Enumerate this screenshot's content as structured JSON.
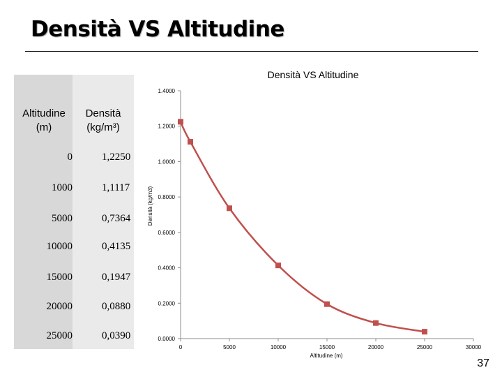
{
  "slide": {
    "title": "Densità VS Altitudine",
    "page_number": "37"
  },
  "table": {
    "header_altitude": [
      "Altitudine",
      "(m)"
    ],
    "header_density": [
      "Densità",
      "(kg/m³)"
    ],
    "rows": [
      {
        "altitude": "0",
        "density": "1,2250"
      },
      {
        "altitude": "1000",
        "density": "1,1117"
      },
      {
        "altitude": "5000",
        "density": "0,7364"
      },
      {
        "altitude": "10000",
        "density": "0,4135"
      },
      {
        "altitude": "15000",
        "density": "0,1947"
      },
      {
        "altitude": "20000",
        "density": "0,0880"
      },
      {
        "altitude": "25000",
        "density": "0,0390"
      }
    ]
  },
  "chart_data": {
    "type": "line",
    "title": "Densità VS Altitudine",
    "xlabel": "Altitudine (m)",
    "ylabel": "Densità (kg/m3)",
    "xlim": [
      0,
      30000
    ],
    "ylim": [
      0,
      1.4
    ],
    "x_ticks": [
      0,
      5000,
      10000,
      15000,
      20000,
      25000,
      30000
    ],
    "x_tick_labels": [
      "0",
      "5000",
      "10000",
      "15000",
      "20000",
      "25000",
      "30000"
    ],
    "y_ticks": [
      0,
      0.2,
      0.4,
      0.6,
      0.8,
      1.0,
      1.2,
      1.4
    ],
    "y_tick_labels": [
      "0.0000",
      "0.2000",
      "0.4000",
      "0.6000",
      "0.8000",
      "1.0000",
      "1.2000",
      "1.4000"
    ],
    "grid": false,
    "legend": "none",
    "series": [
      {
        "x": [
          0,
          1000,
          5000,
          10000,
          15000,
          20000,
          25000
        ],
        "values": [
          1.225,
          1.1117,
          0.7364,
          0.4135,
          0.1947,
          0.088,
          0.039
        ],
        "color": "#c0504d",
        "marker": "square",
        "smooth": true
      }
    ]
  }
}
